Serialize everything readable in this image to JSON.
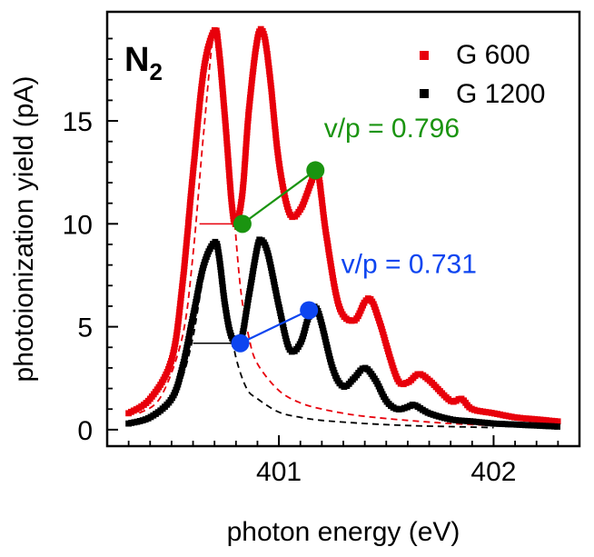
{
  "chart_data": {
    "type": "line",
    "title": "N",
    "title_subscript": "2",
    "xlabel": "photon energy (eV)",
    "ylabel": "photoionization yield (pA)",
    "xlim": [
      400.2,
      402.4
    ],
    "ylim": [
      -0.8,
      20.3
    ],
    "x_ticks": [
      401,
      402
    ],
    "y_ticks": [
      0,
      5,
      10,
      15
    ],
    "legend_position": "top-right",
    "series": [
      {
        "name": "G 600",
        "color": "#e8000b",
        "marker": "square",
        "x": [
          400.3,
          400.4,
          400.5,
          400.55,
          400.6,
          400.65,
          400.7,
          400.72,
          400.75,
          400.78,
          400.8,
          400.83,
          400.86,
          400.9,
          400.93,
          400.96,
          401.0,
          401.05,
          401.1,
          401.15,
          401.18,
          401.22,
          401.28,
          401.35,
          401.4,
          401.43,
          401.47,
          401.55,
          401.6,
          401.65,
          401.7,
          401.8,
          401.85,
          401.9,
          402.0,
          402.1,
          402.2,
          402.3
        ],
        "y": [
          0.8,
          1.5,
          3.4,
          7.0,
          12.5,
          17.5,
          19.4,
          18.5,
          15.0,
          11.0,
          10.0,
          11.5,
          15.5,
          19.0,
          19.2,
          17.0,
          13.0,
          10.5,
          10.7,
          12.0,
          12.6,
          9.5,
          6.0,
          5.3,
          6.2,
          6.3,
          5.2,
          2.5,
          2.3,
          2.7,
          2.4,
          1.4,
          1.5,
          1.0,
          0.8,
          0.6,
          0.5,
          0.4
        ]
      },
      {
        "name": "G 1200",
        "color": "#000000",
        "marker": "square",
        "x": [
          400.3,
          400.4,
          400.5,
          400.55,
          400.6,
          400.65,
          400.7,
          400.72,
          400.75,
          400.78,
          400.82,
          400.86,
          400.9,
          400.92,
          400.95,
          401.0,
          401.05,
          401.1,
          401.14,
          401.18,
          401.25,
          401.3,
          401.35,
          401.4,
          401.45,
          401.5,
          401.55,
          401.6,
          401.63,
          401.7,
          401.8,
          401.9,
          402.0,
          402.1,
          402.2,
          402.3
        ],
        "y": [
          0.3,
          0.6,
          1.5,
          3.0,
          5.5,
          8.0,
          9.1,
          8.5,
          6.0,
          4.5,
          4.2,
          6.5,
          8.9,
          9.2,
          8.5,
          6.0,
          3.9,
          4.2,
          5.5,
          5.8,
          3.0,
          2.1,
          2.5,
          3.0,
          2.4,
          1.4,
          1.0,
          1.1,
          1.2,
          0.8,
          0.5,
          0.4,
          0.3,
          0.25,
          0.2,
          0.15
        ]
      }
    ],
    "fits": [
      {
        "name": "G 600 Lorentzian fit",
        "color": "#e8000b",
        "style": "dashed",
        "x": [
          400.35,
          400.45,
          400.55,
          400.6,
          400.65,
          400.7,
          400.74,
          400.78,
          400.82,
          400.86,
          400.9,
          401.0,
          401.1,
          401.2,
          401.3,
          401.4,
          401.6,
          401.8,
          402.0
        ],
        "y": [
          0.8,
          1.6,
          4.5,
          8.5,
          14.5,
          19.4,
          17.5,
          12.0,
          7.0,
          4.5,
          3.2,
          1.9,
          1.3,
          1.0,
          0.8,
          0.65,
          0.45,
          0.3,
          0.2
        ]
      },
      {
        "name": "G 1200 Lorentzian fit",
        "color": "#000000",
        "style": "dashed",
        "x": [
          400.4,
          400.5,
          400.55,
          400.6,
          400.65,
          400.7,
          400.73,
          400.76,
          400.8,
          400.85,
          400.9,
          401.0,
          401.1,
          401.2,
          401.4,
          401.6,
          401.8,
          402.0
        ],
        "y": [
          0.5,
          1.4,
          2.5,
          4.5,
          7.5,
          9.1,
          8.0,
          5.8,
          3.5,
          2.0,
          1.5,
          0.85,
          0.6,
          0.45,
          0.3,
          0.2,
          0.15,
          0.1
        ]
      }
    ],
    "annotations": [
      {
        "label": "v/p = 0.796",
        "color": "#1a9410",
        "valley": [
          400.83,
          10.0
        ],
        "peak": [
          401.17,
          12.6
        ],
        "level_start_x": 400.63,
        "text_anchor": [
          401.21,
          14.2
        ]
      },
      {
        "label": "v/p = 0.731",
        "color": "#0d45f0",
        "valley": [
          400.82,
          4.2
        ],
        "peak": [
          401.14,
          5.8
        ],
        "level_start_x": 400.6,
        "text_anchor": [
          401.29,
          7.6
        ]
      }
    ]
  }
}
